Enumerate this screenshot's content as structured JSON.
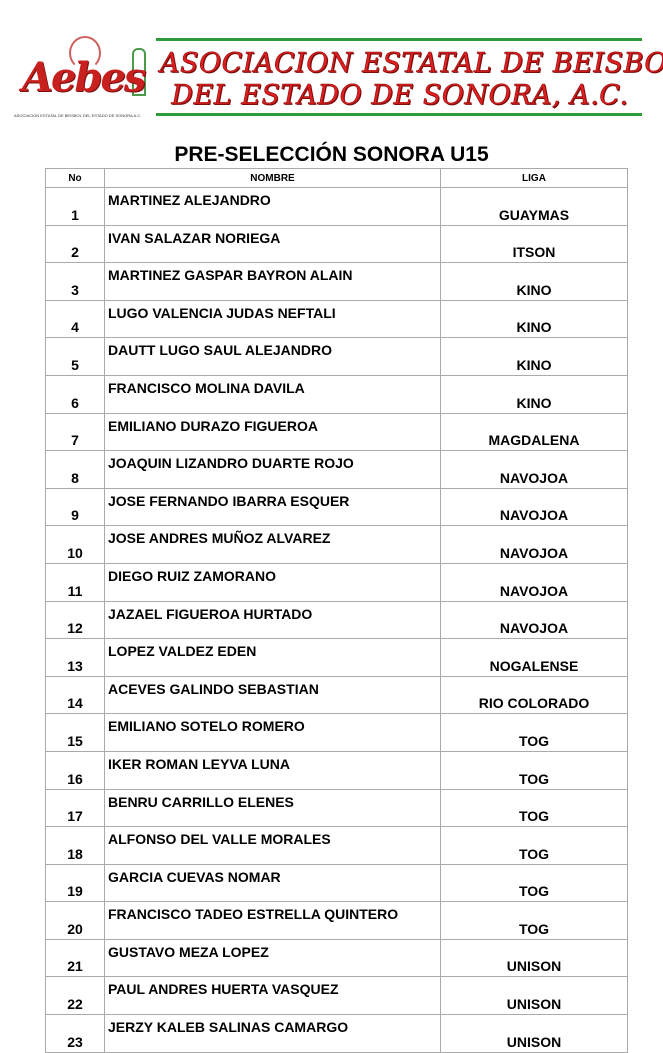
{
  "header": {
    "logo_text": "Aebes",
    "logo_subtext": "ASOCIACION ESTATAL DE BEISBOL DEL ESTADO DE SONORA A.C.",
    "banner_line1": "ASOCIACION ESTATAL DE BEISBOL",
    "banner_line2": "DEL ESTADO DE SONORA,  A.C.",
    "colors": {
      "banner_red": "#e02020",
      "rule_green": "#2e9a3a"
    }
  },
  "title": "PRE-SELECCIÓN SONORA U15",
  "table": {
    "columns": [
      "No",
      "NOMBRE",
      "LIGA"
    ],
    "rows": [
      [
        "1",
        "MARTINEZ ALEJANDRO",
        "GUAYMAS"
      ],
      [
        "2",
        "IVAN SALAZAR NORIEGA",
        "ITSON"
      ],
      [
        "3",
        "MARTINEZ GASPAR BAYRON ALAIN",
        "KINO"
      ],
      [
        "4",
        "LUGO VALENCIA JUDAS NEFTALI",
        "KINO"
      ],
      [
        "5",
        "DAUTT LUGO SAUL ALEJANDRO",
        "KINO"
      ],
      [
        "6",
        "FRANCISCO MOLINA DAVILA",
        "KINO"
      ],
      [
        "7",
        "EMILIANO DURAZO FIGUEROA",
        "MAGDALENA"
      ],
      [
        "8",
        "JOAQUIN LIZANDRO DUARTE ROJO",
        "NAVOJOA"
      ],
      [
        "9",
        "JOSE FERNANDO IBARRA ESQUER",
        "NAVOJOA"
      ],
      [
        "10",
        "JOSE ANDRES MUÑOZ ALVAREZ",
        "NAVOJOA"
      ],
      [
        "11",
        "DIEGO RUIZ ZAMORANO",
        "NAVOJOA"
      ],
      [
        "12",
        "JAZAEL FIGUEROA HURTADO",
        "NAVOJOA"
      ],
      [
        "13",
        "LOPEZ VALDEZ EDEN",
        "NOGALENSE"
      ],
      [
        "14",
        "ACEVES GALINDO SEBASTIAN",
        "RIO COLORADO"
      ],
      [
        "15",
        "EMILIANO SOTELO ROMERO",
        "TOG"
      ],
      [
        "16",
        "IKER ROMAN LEYVA LUNA",
        "TOG"
      ],
      [
        "17",
        "BENRU CARRILLO ELENES",
        "TOG"
      ],
      [
        "18",
        "ALFONSO DEL VALLE MORALES",
        "TOG"
      ],
      [
        "19",
        "GARCIA CUEVAS NOMAR",
        "TOG"
      ],
      [
        "20",
        "FRANCISCO TADEO ESTRELLA QUINTERO",
        "TOG"
      ],
      [
        "21",
        "GUSTAVO MEZA LOPEZ",
        "UNISON"
      ],
      [
        "22",
        "PAUL ANDRES HUERTA VASQUEZ",
        "UNISON"
      ],
      [
        "23",
        "JERZY KALEB SALINAS CAMARGO",
        "UNISON"
      ]
    ]
  }
}
